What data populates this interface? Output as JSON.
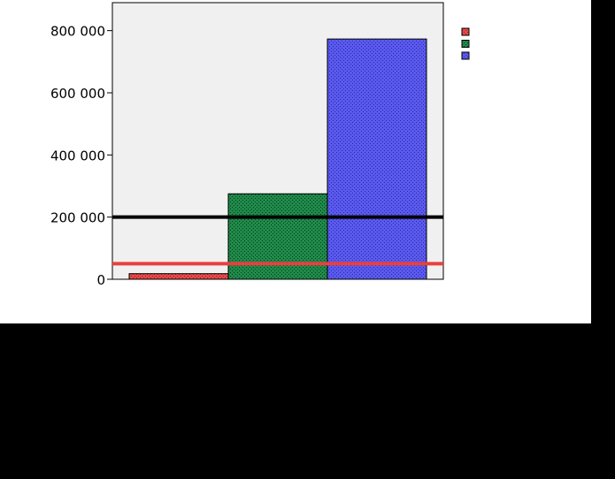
{
  "chart_data": {
    "type": "bar",
    "categories": [
      "",
      "",
      ""
    ],
    "values": [
      18000,
      275000,
      773000
    ],
    "series_colors": [
      "#e84a4a",
      "#1f8a4a",
      "#5a5af0"
    ],
    "legend_entries": [
      "",
      "",
      ""
    ],
    "legend_position": "right",
    "y_ticks": [
      "0",
      "200 000",
      "400 000",
      "600 000",
      "800 000"
    ],
    "y_tick_values": [
      0,
      200000,
      400000,
      600000,
      800000
    ],
    "ylim": [
      0,
      890000
    ],
    "grid": false,
    "reference_lines": [
      {
        "value": 200000,
        "color": "#000000"
      },
      {
        "value": 50000,
        "color": "#e84040"
      }
    ],
    "title": "",
    "xlabel": "",
    "ylabel": ""
  }
}
